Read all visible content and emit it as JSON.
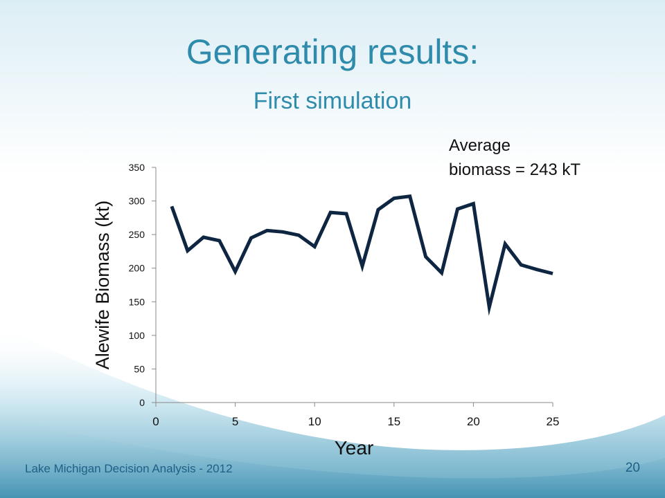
{
  "slide": {
    "title": "Generating results:",
    "subtitle": "First simulation",
    "annotation_line1": "Average",
    "annotation_line2": "biomass = 243 kT",
    "footer": "Lake Michigan Decision Analysis - 2012",
    "page_number": "20",
    "colors": {
      "title": "#2f8bab",
      "line": "#0f2642",
      "footer": "#1f5f86"
    }
  },
  "chart_data": {
    "type": "line",
    "title": "",
    "xlabel": "Year",
    "ylabel": "Alewife Biomass (kt)",
    "xlim": [
      0,
      25
    ],
    "ylim": [
      0,
      350
    ],
    "xticks": [
      0,
      5,
      10,
      15,
      20,
      25
    ],
    "yticks": [
      0,
      50,
      100,
      150,
      200,
      250,
      300,
      350
    ],
    "grid": false,
    "series": [
      {
        "x": [
          1,
          2,
          3,
          4,
          5,
          6,
          7,
          8,
          9,
          10,
          11,
          12,
          13,
          14,
          15,
          16,
          17,
          18,
          19,
          20,
          21,
          22,
          23,
          24,
          25
        ],
        "y": [
          292,
          226,
          246,
          241,
          195,
          245,
          256,
          254,
          249,
          232,
          283,
          281,
          203,
          287,
          304,
          307,
          217,
          193,
          288,
          296,
          142,
          236,
          205,
          198,
          192
        ]
      }
    ]
  }
}
